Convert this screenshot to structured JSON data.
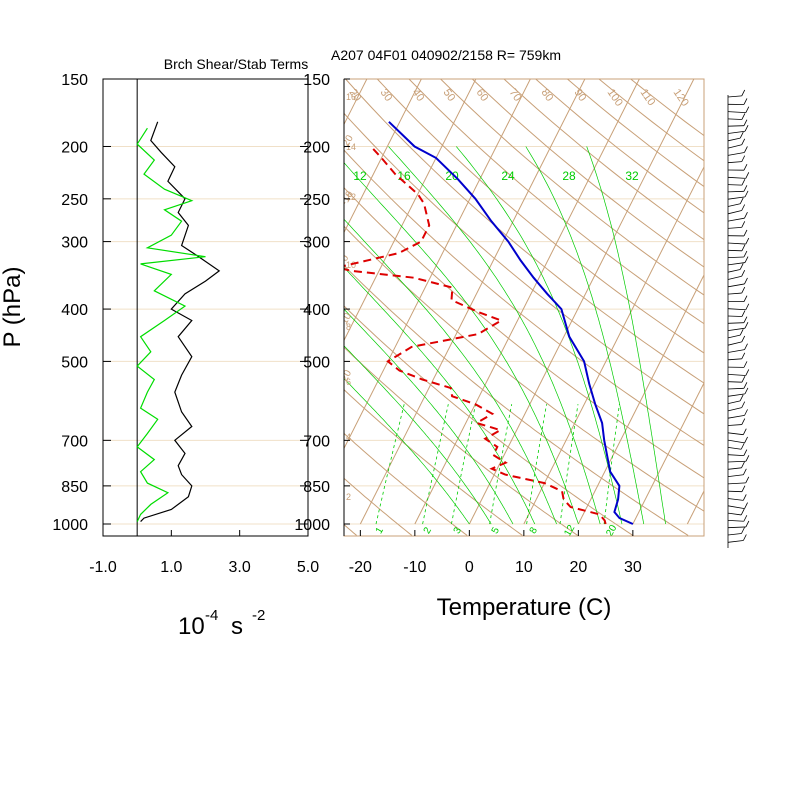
{
  "header": {
    "left_title": "Brch Shear/Stab Terms",
    "right_title": "A207 04F01 040902/2158 R= 759km"
  },
  "chart_data": [
    {
      "type": "line",
      "panel": "stability-shear",
      "title": "Brch Shear/Stab Terms",
      "xlabel": "10",
      "xlabel_exp": "-4",
      "xlabel_unit": "s",
      "xlabel_unit_exp": "-2",
      "ylabel": "P (hPa)",
      "xlim": [
        -1.0,
        5.0
      ],
      "ylim": [
        1000,
        150
      ],
      "y_scale": "log",
      "x_ticks": [
        "-1.0",
        "1.0",
        "3.0",
        "5.0"
      ],
      "y_ticks": [
        "150",
        "200",
        "250",
        "300",
        "400",
        "500",
        "700",
        "850",
        "1000"
      ],
      "colors": {
        "shear": "#000000",
        "stab": "#00dd00"
      },
      "series": [
        {
          "id": "black",
          "color": "#000000",
          "points": [
            [
              0.1,
              990
            ],
            [
              0.2,
              975
            ],
            [
              1.0,
              940
            ],
            [
              1.5,
              890
            ],
            [
              1.6,
              850
            ],
            [
              1.3,
              810
            ],
            [
              1.2,
              780
            ],
            [
              1.4,
              740
            ],
            [
              1.1,
              700
            ],
            [
              1.6,
              660
            ],
            [
              1.3,
              620
            ],
            [
              1.1,
              570
            ],
            [
              1.3,
              530
            ],
            [
              1.6,
              490
            ],
            [
              1.2,
              450
            ],
            [
              1.6,
              420
            ],
            [
              1.0,
              400
            ],
            [
              1.4,
              375
            ],
            [
              2.0,
              355
            ],
            [
              2.4,
              340
            ],
            [
              1.8,
              320
            ],
            [
              1.3,
              305
            ],
            [
              1.5,
              280
            ],
            [
              1.2,
              265
            ],
            [
              1.4,
              250
            ],
            [
              0.9,
              232
            ],
            [
              1.1,
              218
            ],
            [
              0.7,
              205
            ],
            [
              0.4,
              195
            ],
            [
              0.6,
              180
            ]
          ]
        },
        {
          "id": "green",
          "color": "#00dd00",
          "points": [
            [
              0.0,
              990
            ],
            [
              0.1,
              960
            ],
            [
              0.4,
              920
            ],
            [
              0.9,
              875
            ],
            [
              0.3,
              840
            ],
            [
              0.1,
              800
            ],
            [
              0.5,
              760
            ],
            [
              0.0,
              720
            ],
            [
              0.3,
              680
            ],
            [
              0.6,
              640
            ],
            [
              0.1,
              610
            ],
            [
              0.3,
              570
            ],
            [
              0.5,
              540
            ],
            [
              0.0,
              510
            ],
            [
              0.4,
              480
            ],
            [
              0.1,
              450
            ],
            [
              0.8,
              420
            ],
            [
              1.4,
              395
            ],
            [
              0.5,
              370
            ],
            [
              1.0,
              345
            ],
            [
              0.1,
              330
            ],
            [
              2.0,
              320
            ],
            [
              0.3,
              308
            ],
            [
              1.0,
              292
            ],
            [
              1.3,
              275
            ],
            [
              0.8,
              262
            ],
            [
              1.6,
              252
            ],
            [
              0.8,
              240
            ],
            [
              0.2,
              225
            ],
            [
              0.5,
              212
            ],
            [
              0.0,
              198
            ],
            [
              0.3,
              185
            ]
          ]
        }
      ]
    },
    {
      "type": "line",
      "panel": "skew-t",
      "title": "A207 04F01 040902/2158 R= 759km",
      "xlabel": "Temperature (C)",
      "xlim": [
        -23,
        42
      ],
      "ylim": [
        1000,
        150
      ],
      "y_scale": "log",
      "x_ticks": [
        "-20",
        "-10",
        "0",
        "10",
        "20",
        "30"
      ],
      "y_ticks": [
        "150",
        "200",
        "250",
        "300",
        "400",
        "500",
        "700",
        "850",
        "1000"
      ],
      "skew_c_per_decade": 50,
      "colors": {
        "temperature": "#0000cc",
        "dewpoint": "#dd0000",
        "isotherm": "#c8a078",
        "mixing_ratio": "#00cc00",
        "moist_adiabat": "#00cc00",
        "wind_barb": "#000000"
      },
      "dry_adiabat_labels": [
        "20",
        "30",
        "40",
        "50",
        "60",
        "70",
        "80",
        "90",
        "100",
        "110",
        "120",
        "130",
        "140",
        "150"
      ],
      "mixing_ratio_top_labels": [
        "12",
        "16",
        "20",
        "24",
        "28",
        "32"
      ],
      "mixing_ratio_bottom_labels": [
        "1",
        "2",
        "3",
        "5",
        "8",
        "12",
        "20"
      ],
      "isotherm_side_labels": [
        "-20",
        "-10",
        "0",
        "10",
        "20"
      ],
      "height_labels": [
        "2",
        "4",
        "6",
        "8",
        "10",
        "12",
        "14",
        "16"
      ],
      "series": [
        {
          "name": "",
          "id": "temperature",
          "style": "solid",
          "color": "#0000cc",
          "points": [
            [
              30.0,
              1000
            ],
            [
              27.0,
              975
            ],
            [
              25.5,
              950
            ],
            [
              25.0,
              900
            ],
            [
              24.0,
              850
            ],
            [
              21.0,
              800
            ],
            [
              17.0,
              700
            ],
            [
              15.0,
              650
            ],
            [
              12.0,
              600
            ],
            [
              9.0,
              550
            ],
            [
              6.0,
              500
            ],
            [
              1.0,
              450
            ],
            [
              -3.0,
              400
            ],
            [
              -7.0,
              375
            ],
            [
              -11.0,
              350
            ],
            [
              -15.0,
              325
            ],
            [
              -19.0,
              300
            ],
            [
              -24.0,
              275
            ],
            [
              -29.0,
              250
            ],
            [
              -34.0,
              230
            ],
            [
              -40.0,
              210
            ],
            [
              -45.0,
              200
            ],
            [
              -52.0,
              180
            ]
          ]
        },
        {
          "name": "",
          "id": "dewpoint",
          "style": "dashed",
          "color": "#dd0000",
          "points": [
            [
              25.0,
              1000
            ],
            [
              24.5,
              985
            ],
            [
              23.0,
              960
            ],
            [
              17.0,
              930
            ],
            [
              15.0,
              900
            ],
            [
              14.0,
              870
            ],
            [
              10.0,
              840
            ],
            [
              2.0,
              810
            ],
            [
              -1.0,
              790
            ],
            [
              1.0,
              770
            ],
            [
              -2.0,
              745
            ],
            [
              -2.0,
              720
            ],
            [
              -5.0,
              695
            ],
            [
              -3.0,
              670
            ],
            [
              -8.0,
              650
            ],
            [
              -6.0,
              625
            ],
            [
              -10.0,
              600
            ],
            [
              -15.0,
              580
            ],
            [
              -16.0,
              560
            ],
            [
              -22.0,
              540
            ],
            [
              -27.0,
              520
            ],
            [
              -30.0,
              500
            ],
            [
              -27.0,
              470
            ],
            [
              -16.0,
              445
            ],
            [
              -13.0,
              420
            ],
            [
              -18.0,
              405
            ],
            [
              -24.0,
              385
            ],
            [
              -25.0,
              365
            ],
            [
              -33.0,
              350
            ],
            [
              -45.0,
              340
            ],
            [
              -48.0,
              335
            ],
            [
              -38.0,
              315
            ],
            [
              -35.0,
              300
            ],
            [
              -35.0,
              280
            ],
            [
              -38.0,
              255
            ],
            [
              -40.0,
              245
            ],
            [
              -46.0,
              225
            ],
            [
              -50.0,
              210
            ],
            [
              -53.0,
              200
            ]
          ]
        }
      ]
    }
  ]
}
